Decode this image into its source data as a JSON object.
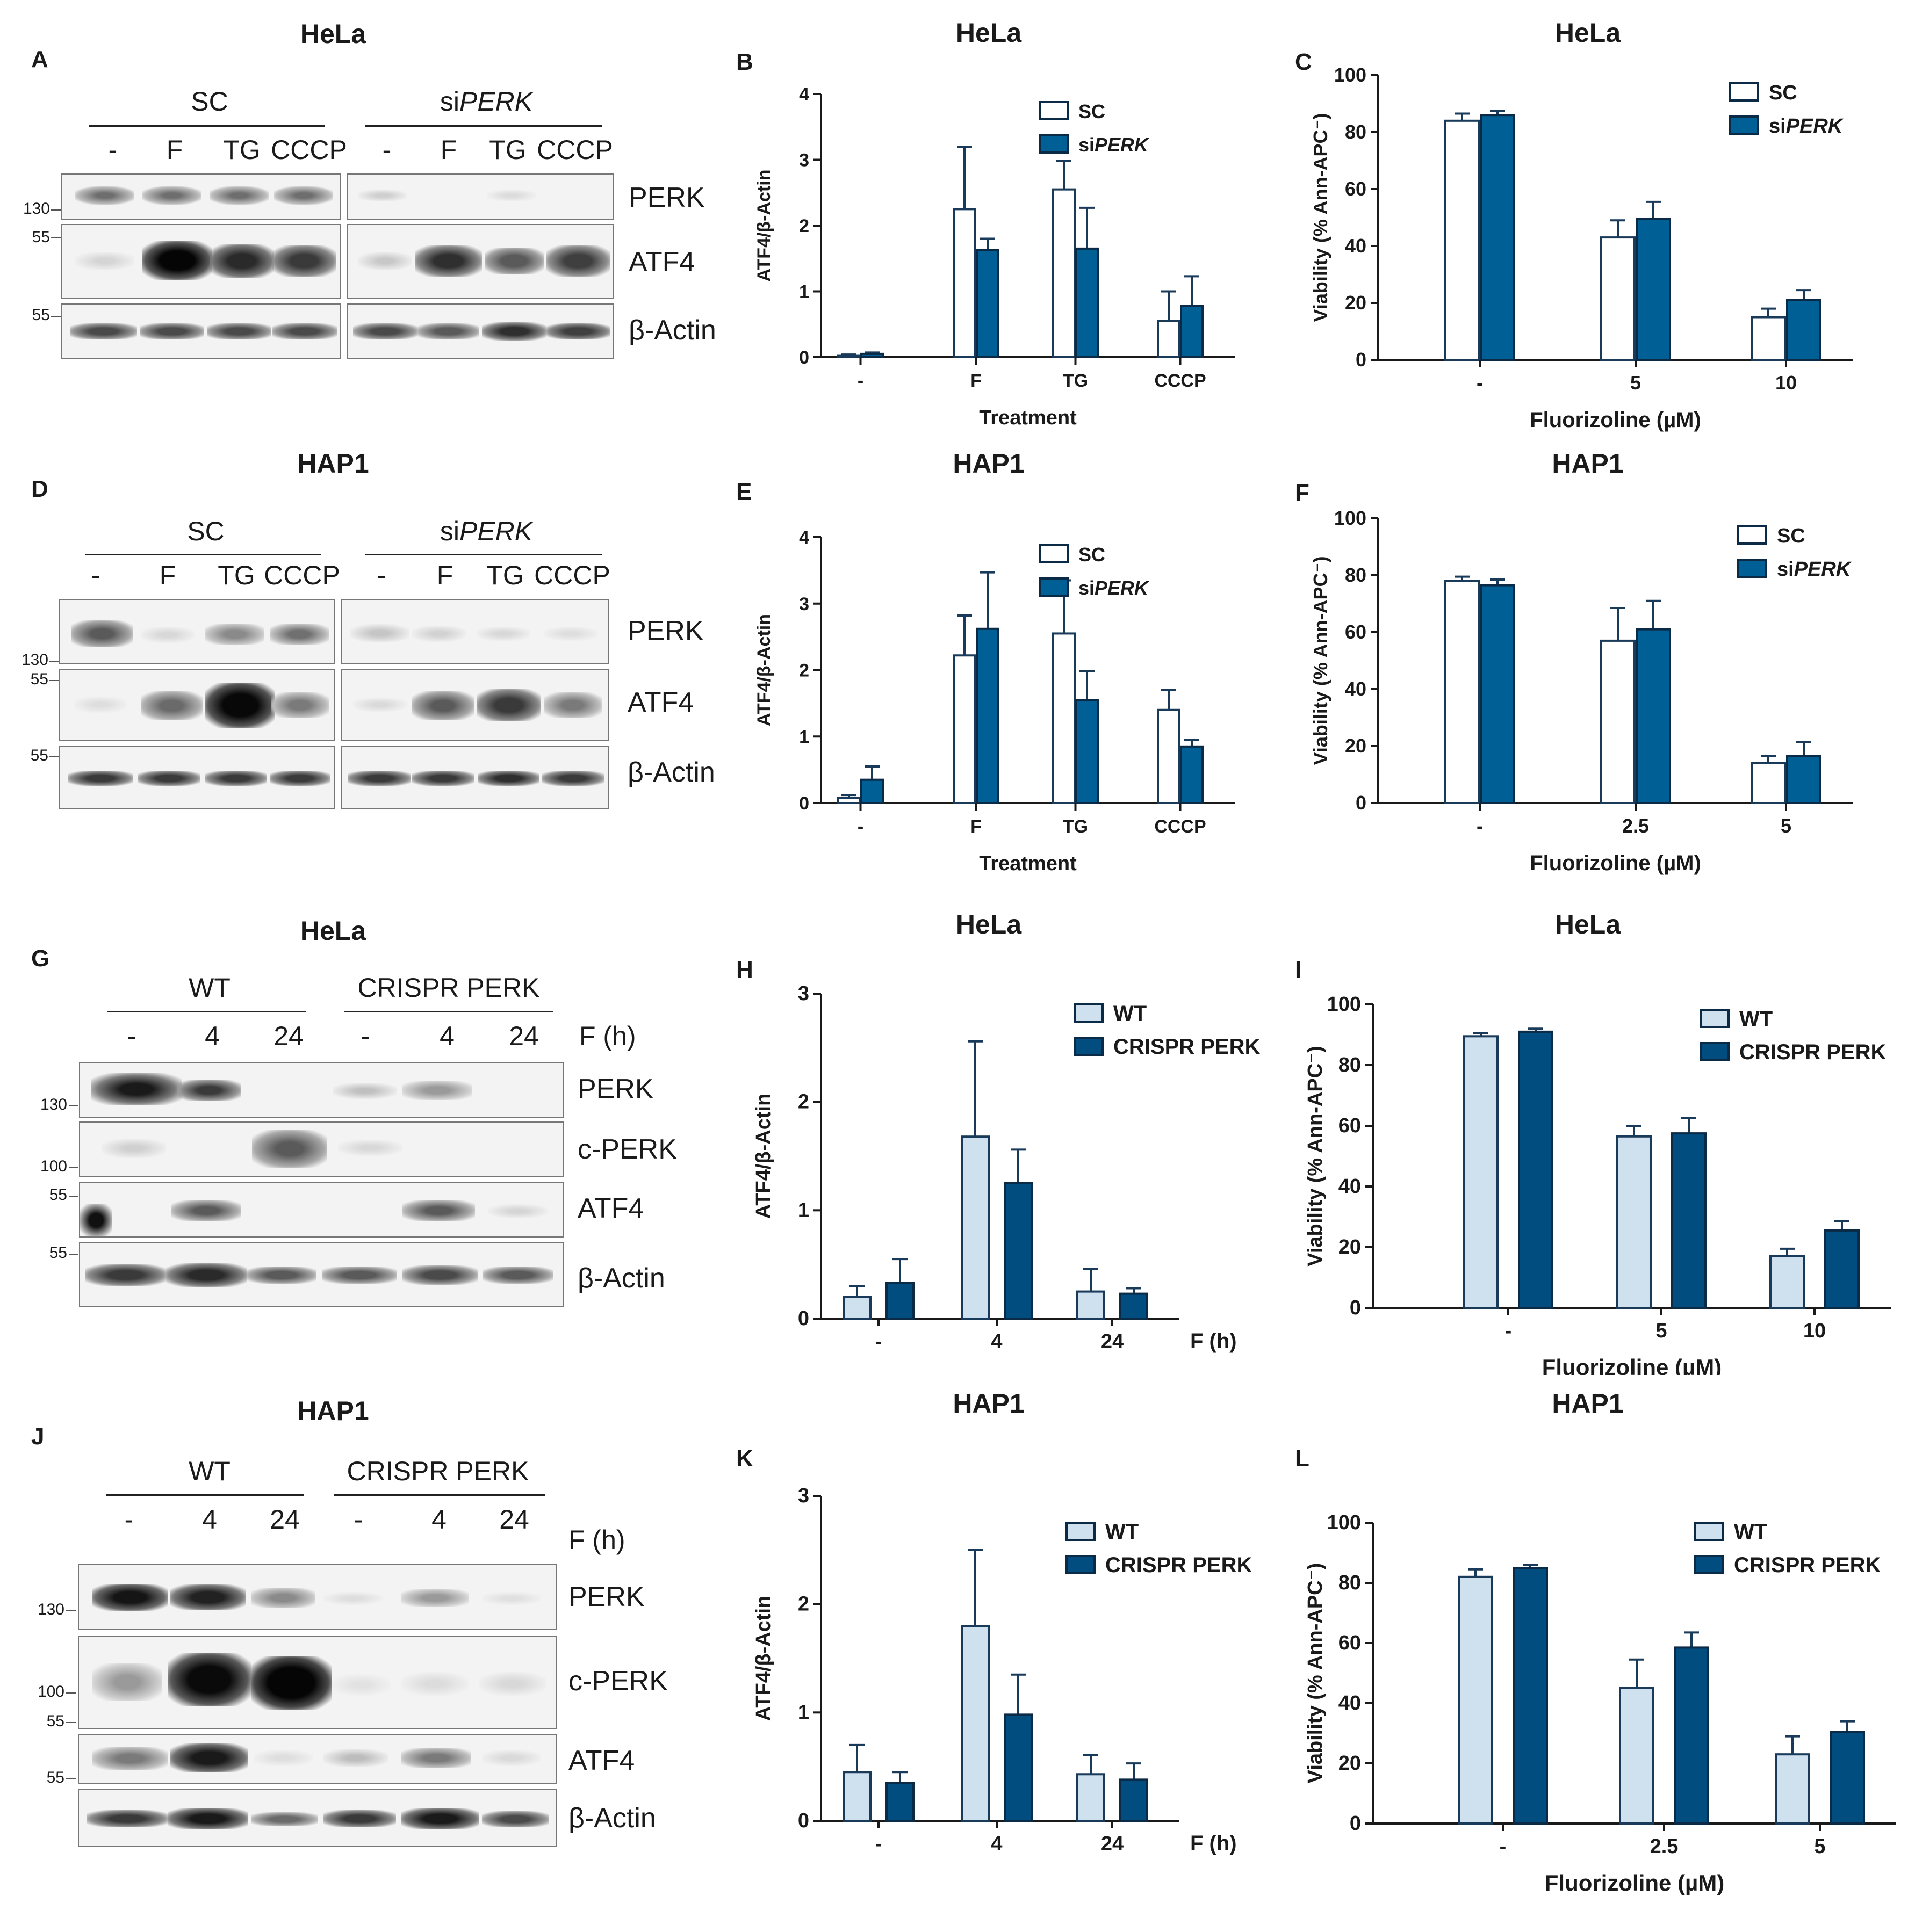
{
  "colors": {
    "sc_fill": "#ffffff",
    "siperk_fill": "#005f94",
    "wt_fill": "#cfe0ef",
    "crispr_fill": "#024d80",
    "axis": "#1a1a1a"
  },
  "blots": [
    {
      "id": "A",
      "letter": "A",
      "title": "HeLa",
      "groups": [
        {
          "label": "SC"
        },
        {
          "label_prefix": "si",
          "label_italic": "PERK"
        }
      ],
      "lanes": [
        "-",
        "F",
        "TG",
        "CCCP",
        "-",
        "F",
        "TG",
        "CCCP"
      ],
      "proteins": [
        "PERK",
        "ATF4",
        "β-Actin"
      ],
      "markers": [
        "130",
        "55",
        "55"
      ]
    },
    {
      "id": "D",
      "letter": "D",
      "title": "HAP1",
      "groups": [
        {
          "label": "SC"
        },
        {
          "label_prefix": "si",
          "label_italic": "PERK"
        }
      ],
      "lanes": [
        "-",
        "F",
        "TG",
        "CCCP",
        "-",
        "F",
        "TG",
        "CCCP"
      ],
      "proteins": [
        "PERK",
        "ATF4",
        "β-Actin"
      ],
      "markers": [
        "130",
        "55",
        "55"
      ]
    },
    {
      "id": "G",
      "letter": "G",
      "title": "HeLa",
      "groups": [
        {
          "label": "WT"
        },
        {
          "label": "CRISPR PERK"
        }
      ],
      "lanes": [
        "-",
        "4",
        "24",
        "-",
        "4",
        "24"
      ],
      "time_label": "F (h)",
      "proteins": [
        "PERK",
        "c-PERK",
        "ATF4",
        "β-Actin"
      ],
      "markers": [
        "130",
        "100",
        "55",
        "55"
      ]
    },
    {
      "id": "J",
      "letter": "J",
      "title": "HAP1",
      "groups": [
        {
          "label": "WT"
        },
        {
          "label": "CRISPR PERK"
        }
      ],
      "lanes": [
        "-",
        "4",
        "24",
        "-",
        "4",
        "24"
      ],
      "time_label": "F (h)",
      "proteins": [
        "PERK",
        "c-PERK",
        "ATF4",
        "β-Actin"
      ],
      "markers": [
        "130",
        "100",
        "55",
        "55"
      ]
    }
  ],
  "chart_data": [
    {
      "id": "B",
      "letter": "B",
      "title": "HeLa",
      "type": "bar",
      "categories": [
        "-",
        "F",
        "TG",
        "CCCP"
      ],
      "xlabel": "Treatment",
      "ylabel": "ATF4/β-Actin",
      "ylim": [
        0,
        4
      ],
      "yticks": [
        0,
        1,
        2,
        3,
        4
      ],
      "series": [
        {
          "name": "SC",
          "fill": "#ffffff",
          "values": [
            0.02,
            2.25,
            2.55,
            0.55
          ],
          "errors": [
            0.02,
            0.95,
            0.43,
            0.45
          ]
        },
        {
          "name_prefix": "si",
          "name_italic": "PERK",
          "fill": "#005f94",
          "values": [
            0.05,
            1.63,
            1.65,
            0.78
          ],
          "errors": [
            0.02,
            0.17,
            0.62,
            0.45
          ]
        }
      ],
      "legend": "top-right"
    },
    {
      "id": "C",
      "letter": "C",
      "title": "HeLa",
      "type": "bar",
      "categories": [
        "-",
        "5",
        "10"
      ],
      "xlabel": "Fluorizoline (µM)",
      "ylabel": "Viability (% Ann-APC⁻)",
      "ylim": [
        0,
        100
      ],
      "yticks": [
        0,
        20,
        40,
        60,
        80,
        100
      ],
      "series": [
        {
          "name": "SC",
          "fill": "#ffffff",
          "values": [
            84,
            43,
            15
          ],
          "errors": [
            2.5,
            6,
            3
          ]
        },
        {
          "name_prefix": "si",
          "name_italic": "PERK",
          "fill": "#005f94",
          "values": [
            86,
            49.5,
            21
          ],
          "errors": [
            1.5,
            6,
            3.5
          ]
        }
      ],
      "legend": "top-right"
    },
    {
      "id": "E",
      "letter": "E",
      "title": "HAP1",
      "type": "bar",
      "categories": [
        "-",
        "F",
        "TG",
        "CCCP"
      ],
      "xlabel": "Treatment",
      "ylabel": "ATF4/β-Actin",
      "ylim": [
        0,
        4
      ],
      "yticks": [
        0,
        1,
        2,
        3,
        4
      ],
      "series": [
        {
          "name": "SC",
          "fill": "#ffffff",
          "values": [
            0.08,
            2.22,
            2.55,
            1.4
          ],
          "errors": [
            0.04,
            0.6,
            0.8,
            0.3
          ]
        },
        {
          "name_prefix": "si",
          "name_italic": "PERK",
          "fill": "#005f94",
          "values": [
            0.35,
            2.62,
            1.55,
            0.85
          ],
          "errors": [
            0.2,
            0.85,
            0.43,
            0.1
          ]
        }
      ],
      "legend": "top-right"
    },
    {
      "id": "F",
      "letter": "F",
      "title": "HAP1",
      "type": "bar",
      "categories": [
        "-",
        "2.5",
        "5"
      ],
      "xlabel": "Fluorizoline (µM)",
      "ylabel": "Viability (% Ann-APC⁻)",
      "ylim": [
        0,
        100
      ],
      "yticks": [
        0,
        20,
        40,
        60,
        80,
        100
      ],
      "series": [
        {
          "name": "SC",
          "fill": "#ffffff",
          "values": [
            78,
            57,
            14
          ],
          "errors": [
            1.5,
            11.5,
            2.5
          ]
        },
        {
          "name_prefix": "si",
          "name_italic": "PERK",
          "fill": "#005f94",
          "values": [
            76.5,
            61,
            16.5
          ],
          "errors": [
            2,
            10,
            5
          ]
        }
      ],
      "legend": "top-right"
    },
    {
      "id": "H",
      "letter": "H",
      "title": "HeLa",
      "type": "bar",
      "categories": [
        "-",
        "4",
        "24"
      ],
      "xlabel": "F (h)",
      "ylabel": "ATF4/β-Actin",
      "ylim": [
        0,
        3
      ],
      "yticks": [
        0,
        1,
        2,
        3
      ],
      "series": [
        {
          "name": "WT",
          "fill": "#cfe0ef",
          "values": [
            0.2,
            1.68,
            0.25
          ],
          "errors": [
            0.1,
            0.88,
            0.21
          ]
        },
        {
          "name": "CRISPR PERK",
          "fill": "#024d80",
          "values": [
            0.33,
            1.25,
            0.23
          ],
          "errors": [
            0.22,
            0.31,
            0.05
          ]
        }
      ],
      "legend": "top-right"
    },
    {
      "id": "I",
      "letter": "I",
      "title": "HeLa",
      "type": "bar",
      "categories": [
        "-",
        "5",
        "10"
      ],
      "xlabel": "Fluorizoline (µM)",
      "ylabel": "Viability (% Ann-APC⁻)",
      "ylim": [
        0,
        100
      ],
      "yticks": [
        0,
        20,
        40,
        60,
        80,
        100
      ],
      "series": [
        {
          "name": "WT",
          "fill": "#cfe0ef",
          "values": [
            89.5,
            56.5,
            17
          ],
          "errors": [
            1,
            3.5,
            2.5
          ]
        },
        {
          "name": "CRISPR PERK",
          "fill": "#024d80",
          "values": [
            91,
            57.5,
            25.5
          ],
          "errors": [
            1,
            5,
            3
          ]
        }
      ],
      "legend": "top-right"
    },
    {
      "id": "K",
      "letter": "K",
      "title": "HAP1",
      "type": "bar",
      "categories": [
        "-",
        "4",
        "24"
      ],
      "xlabel": "F (h)",
      "ylabel": "ATF4/β-Actin",
      "ylim": [
        0,
        3
      ],
      "yticks": [
        0,
        1,
        2,
        3
      ],
      "series": [
        {
          "name": "WT",
          "fill": "#cfe0ef",
          "values": [
            0.45,
            1.8,
            0.43
          ],
          "errors": [
            0.25,
            0.7,
            0.18
          ]
        },
        {
          "name": "CRISPR PERK",
          "fill": "#024d80",
          "values": [
            0.35,
            0.98,
            0.38
          ],
          "errors": [
            0.1,
            0.37,
            0.15
          ]
        }
      ],
      "legend": "top-right"
    },
    {
      "id": "L",
      "letter": "L",
      "title": "HAP1",
      "type": "bar",
      "categories": [
        "-",
        "2.5",
        "5"
      ],
      "xlabel": "Fluorizoline (µM)",
      "ylabel": "Viability (% Ann-APC⁻)",
      "ylim": [
        0,
        100
      ],
      "yticks": [
        0,
        20,
        40,
        60,
        80,
        100
      ],
      "series": [
        {
          "name": "WT",
          "fill": "#cfe0ef",
          "values": [
            82,
            45,
            23
          ],
          "errors": [
            2.5,
            9.5,
            6
          ]
        },
        {
          "name": "CRISPR PERK",
          "fill": "#024d80",
          "values": [
            85,
            58.5,
            30.5
          ],
          "errors": [
            1,
            5,
            3.5
          ]
        }
      ],
      "legend": "top-right"
    }
  ]
}
